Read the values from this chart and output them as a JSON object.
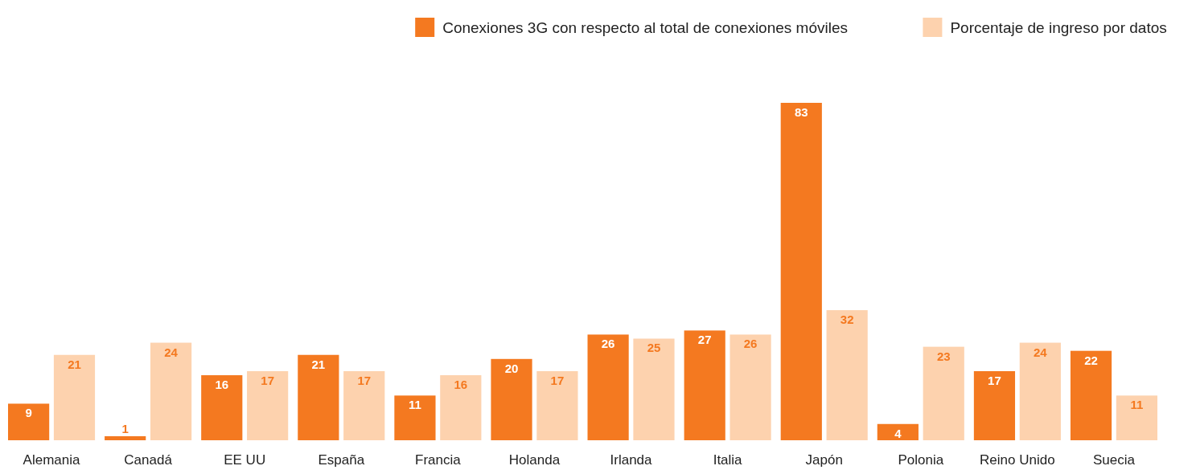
{
  "chart_data": {
    "type": "bar",
    "categories": [
      "Alemania",
      "Canadá",
      "EE UU",
      "España",
      "Francia",
      "Holanda",
      "Irlanda",
      "Italia",
      "Japón",
      "Polonia",
      "Reino Unido",
      "Suecia"
    ],
    "series": [
      {
        "name": "Conexiones 3G con respecto al total de conexiones móviles",
        "color": "#f47920",
        "values": [
          9,
          1,
          16,
          21,
          11,
          20,
          26,
          27,
          83,
          4,
          17,
          22
        ]
      },
      {
        "name": "Porcentaje de ingreso por datos",
        "color": "#fdd2ae",
        "values": [
          21,
          24,
          17,
          17,
          16,
          17,
          25,
          26,
          32,
          23,
          24,
          11
        ]
      }
    ],
    "data_labels": true,
    "legend": "top right"
  }
}
